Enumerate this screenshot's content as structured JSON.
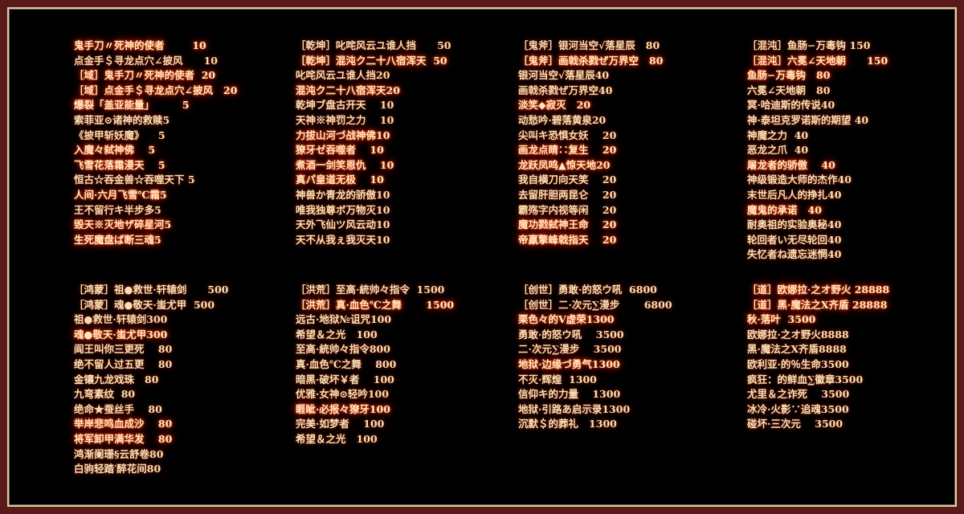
{
  "colors": {
    "frame": "#5a1a1a",
    "background": "#000000",
    "text": "#f3e3b4",
    "glow": "#e02a00"
  },
  "blocks": [
    {
      "items": [
        {
          "t": "鬼手刀〃死神的使者        10",
          "hot": true
        },
        {
          "t": "点金手＄寻龙点穴∠披风      10",
          "hot": false
        },
        {
          "t": "［域］鬼手刀〃死神的使者  20",
          "hot": true
        },
        {
          "t": "［域］点金手＄寻龙点穴∠披风   20",
          "hot": true
        },
        {
          "t": "爆裂「盖亚能量」        5",
          "hot": true
        },
        {
          "t": "索菲亚⊙诸神的救赎5",
          "hot": false
        },
        {
          "t": "《披甲斩妖魔》    5",
          "hot": false
        },
        {
          "t": "入魔々弑神佛    5",
          "hot": true
        },
        {
          "t": "飞雪花落霜漫天    5",
          "hot": true
        },
        {
          "t": "恒古☆吞金兽☆吞噬天下 5",
          "hot": false
        },
        {
          "t": "人间·六月飞雪℃霜5",
          "hot": true
        },
        {
          "t": "王不留行キ半步多5",
          "hot": false
        },
        {
          "t": "毁天※灭地ザ碎星河5",
          "hot": true
        },
        {
          "t": "生死魔盘ば断三魂5",
          "hot": true
        }
      ]
    },
    {
      "items": [
        {
          "t": "［乾坤］叱咤风云ユ谁人挡      50",
          "hot": false
        },
        {
          "t": "［乾坤］混沌ク二十八宿浑天  50",
          "hot": true
        },
        {
          "t": "叱咤风云ユ谁人挡20",
          "hot": false
        },
        {
          "t": "混沌ク二十八宿浑天20",
          "hot": true
        },
        {
          "t": "乾坤ブ盘古开天    10",
          "hot": false
        },
        {
          "t": "天神※神罚之力    10",
          "hot": false
        },
        {
          "t": "力拔山河づ战神佛10",
          "hot": true
        },
        {
          "t": "獠牙ゼ吞噬者    10",
          "hot": true
        },
        {
          "t": "煮酒一剑笑恩仇    10",
          "hot": true
        },
        {
          "t": "真パ皇道无极    10",
          "hot": true
        },
        {
          "t": "神兽か青龙的骄傲10",
          "hot": false
        },
        {
          "t": "唯我独尊ボ万物灭10",
          "hot": false
        },
        {
          "t": "天外飞仙ツ风云动10",
          "hot": false
        },
        {
          "t": "天不从我ぇ我灭天10",
          "hot": false
        }
      ]
    },
    {
      "items": [
        {
          "t": "［鬼斧］银河当空√落星辰   80",
          "hot": false
        },
        {
          "t": "［鬼斧］画戟杀戮ぜ万界空   80",
          "hot": true
        },
        {
          "t": "银河当空√落星辰40",
          "hot": false
        },
        {
          "t": "画戟杀戮ぜ万界空40",
          "hot": false
        },
        {
          "t": "淡笑◆寂灭   20",
          "hot": true
        },
        {
          "t": "动愁吟·碧落黄泉20",
          "hot": false
        },
        {
          "t": "尖叫キ恐惧女妖    20",
          "hot": false
        },
        {
          "t": "画龙点睛∷复生    20",
          "hot": true
        },
        {
          "t": "龙跃凤鸣▲惊天地20",
          "hot": true
        },
        {
          "t": "我自横刀向天笑    20",
          "hot": false
        },
        {
          "t": "去留肝胆两昆仑    20",
          "hot": false
        },
        {
          "t": "霸殇字内视等闲    20",
          "hot": false
        },
        {
          "t": "魔功戮弑神王命    20",
          "hot": true
        },
        {
          "t": "帝羸擎峰戟指天    20",
          "hot": true
        }
      ]
    },
    {
      "items": [
        {
          "t": "［混沌］鱼肠∽万毒钩 150",
          "hot": false
        },
        {
          "t": "［混沌］六冕∠天地朝      150",
          "hot": true
        },
        {
          "t": "鱼肠∽万毒钩   80",
          "hot": true
        },
        {
          "t": "六冕∠天地朝   80",
          "hot": false
        },
        {
          "t": "冥·哈迪斯的传说40",
          "hot": false
        },
        {
          "t": "神·泰坦克罗诺斯的期望 40",
          "hot": false
        },
        {
          "t": "神魔之力  40",
          "hot": false
        },
        {
          "t": "恶龙之爪  40",
          "hot": false
        },
        {
          "t": "屠龙者的骄傲    40",
          "hot": true
        },
        {
          "t": "神级锻造大师的杰作40",
          "hot": false
        },
        {
          "t": "末世后凡人的挣扎40",
          "hot": false
        },
        {
          "t": "魔鬼的承诺   40",
          "hot": true
        },
        {
          "t": "耐奥祖的实验奥秘40",
          "hot": false
        },
        {
          "t": "轮回者い无尽轮回40",
          "hot": false
        },
        {
          "t": "失忆者ね遗忘迷惘40",
          "hot": false
        }
      ]
    },
    {
      "items": [
        {
          "t": "［鸿蒙］祖●救世·轩辕剑      500",
          "hot": false
        },
        {
          "t": "［鸿蒙］魂●敬天·蚩尤甲  500",
          "hot": false
        },
        {
          "t": "祖●救世·轩辕剑300",
          "hot": false
        },
        {
          "t": "魂●敬天·蚩尤甲300",
          "hot": true
        },
        {
          "t": "阎王叫你三更死    80",
          "hot": false
        },
        {
          "t": "绝不留人过五更    80",
          "hot": false
        },
        {
          "t": "金镶九龙戏珠   80",
          "hot": false
        },
        {
          "t": "九弯素纹  80",
          "hot": false
        },
        {
          "t": "绝命★蚕丝手    80",
          "hot": false
        },
        {
          "t": "举岸悲鸣血成沙    80",
          "hot": true
        },
        {
          "t": "将军卸甲满华发    80",
          "hot": true
        },
        {
          "t": "鸿渐阑珊§云舒卷80",
          "hot": false
        },
        {
          "t": "白驹轻踏′醉花间80",
          "hot": false
        }
      ]
    },
    {
      "items": [
        {
          "t": "［洪荒］至高·統帅々指令  1500",
          "hot": false
        },
        {
          "t": "［洪荒］真·血色℃之舞       1500",
          "hot": true
        },
        {
          "t": "远古·地狱№诅咒100",
          "hot": false
        },
        {
          "t": "希望＆之光   100",
          "hot": false
        },
        {
          "t": "至高·統帅々指令800",
          "hot": false
        },
        {
          "t": "真·血色℃之舞    800",
          "hot": false
        },
        {
          "t": "暗黑·破坏￥者    100",
          "hot": false
        },
        {
          "t": "优雅·女神⊙轻吟100",
          "hot": false
        },
        {
          "t": "睚眦·必报々獠牙100",
          "hot": true
        },
        {
          "t": "完美·如梦者    100",
          "hot": false
        },
        {
          "t": "希望＆之光   100",
          "hot": false
        }
      ]
    },
    {
      "items": [
        {
          "t": "［创世］勇敢·的怒ウ吼  6800",
          "hot": false
        },
        {
          "t": "［创世］二·次元∑漫步       6800",
          "hot": false
        },
        {
          "t": "栗色々的V虚荣1300",
          "hot": true
        },
        {
          "t": "勇敢·的怒ウ吼    3500",
          "hot": false
        },
        {
          "t": "二·次元∑漫步    3500",
          "hot": false
        },
        {
          "t": "地狱·边缘づ勇气1300",
          "hot": true
        },
        {
          "t": "不灭·辉煌  1300",
          "hot": false
        },
        {
          "t": "信仰キ的力量    1300",
          "hot": false
        },
        {
          "t": "地狱·引路あ启示录1300",
          "hot": false
        },
        {
          "t": "沉默＄的葬礼   1300",
          "hot": false
        }
      ]
    },
    {
      "items": [
        {
          "t": "［道］欧娜拉·之オ野火 28888",
          "hot": true
        },
        {
          "t": "［道］黑·魔法之X齐盾 28888",
          "hot": true
        },
        {
          "t": "秋·落叶  3500",
          "hot": true
        },
        {
          "t": "欧娜拉·之オ野火8888",
          "hot": false
        },
        {
          "t": "黑·魔法之X齐盾8888",
          "hot": false
        },
        {
          "t": "欧利亚·的％生命3500",
          "hot": false
        },
        {
          "t": "疯狂：的鲜血∑徽章3500",
          "hot": false
        },
        {
          "t": "尤里＆之诈死    3500",
          "hot": false
        },
        {
          "t": "冰冷·火影∵追魂3500",
          "hot": false
        },
        {
          "t": "碰坏·三次元    3500",
          "hot": false
        }
      ]
    }
  ]
}
